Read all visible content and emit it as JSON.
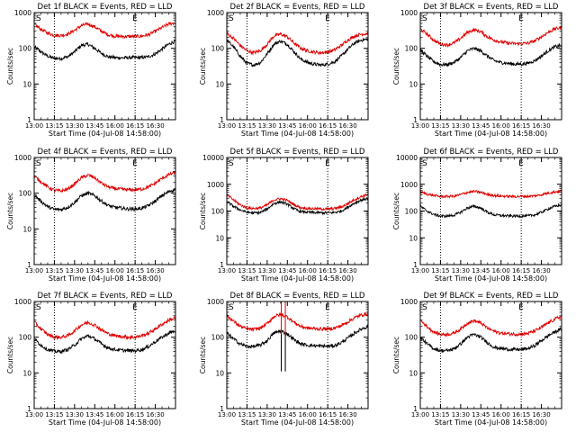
{
  "figure": {
    "colors": {
      "events": "#000000",
      "lld": "#e00000",
      "axes": "#000000",
      "background": "#ffffff"
    },
    "x_tick_labels": [
      "13:00",
      "13:15",
      "13:30",
      "13:45",
      "16:00",
      "16:15",
      "16:30"
    ],
    "y_tick_labels": [
      "1",
      "10",
      "100",
      "1000"
    ],
    "xlabel": "Start Time (04-Jul-08 14:58:00)",
    "ylabel": "Counts/sec",
    "marker_s": "S",
    "marker_e": "E"
  },
  "chart_data": [
    {
      "type": "line",
      "title": "Det 1f BLACK = Events, RED = LLD",
      "y_scale": "log",
      "ylim": [
        1,
        1000
      ],
      "xlim_minutes": [
        0,
        105
      ],
      "x_tick_minutes": [
        0,
        15,
        30,
        45,
        60,
        75,
        90
      ],
      "event_markers_minutes": {
        "S": 15,
        "E": 75
      },
      "x": [
        0,
        5,
        10,
        15,
        20,
        25,
        30,
        35,
        40,
        45,
        50,
        55,
        60,
        65,
        70,
        75,
        80,
        85,
        90,
        95,
        100,
        105
      ],
      "series": [
        {
          "name": "Events",
          "values": [
            110,
            80,
            60,
            52,
            52,
            58,
            80,
            120,
            130,
            100,
            72,
            58,
            55,
            54,
            55,
            55,
            55,
            58,
            70,
            95,
            130,
            160
          ]
        },
        {
          "name": "LLD",
          "values": [
            480,
            340,
            270,
            230,
            230,
            250,
            320,
            430,
            480,
            400,
            300,
            240,
            220,
            215,
            215,
            215,
            220,
            240,
            300,
            380,
            480,
            520
          ]
        }
      ]
    },
    {
      "type": "line",
      "title": "Det 2f BLACK = Events, RED = LLD",
      "y_scale": "log",
      "ylim": [
        1,
        1000
      ],
      "xlim_minutes": [
        0,
        105
      ],
      "x_tick_minutes": [
        0,
        15,
        30,
        45,
        60,
        75,
        90
      ],
      "event_markers_minutes": {
        "S": 15,
        "E": 75
      },
      "x": [
        0,
        5,
        10,
        15,
        20,
        25,
        30,
        35,
        40,
        45,
        50,
        55,
        60,
        65,
        70,
        75,
        80,
        85,
        90,
        95,
        100,
        105
      ],
      "series": [
        {
          "name": "Events",
          "values": [
            170,
            110,
            60,
            38,
            34,
            40,
            70,
            130,
            160,
            130,
            80,
            50,
            40,
            36,
            34,
            36,
            42,
            60,
            95,
            140,
            170,
            180
          ]
        },
        {
          "name": "LLD",
          "values": [
            260,
            190,
            120,
            85,
            75,
            85,
            130,
            220,
            250,
            210,
            140,
            100,
            85,
            78,
            75,
            78,
            90,
            120,
            170,
            220,
            250,
            260
          ]
        }
      ]
    },
    {
      "type": "line",
      "title": "Det 3f BLACK = Events, RED = LLD",
      "y_scale": "log",
      "ylim": [
        1,
        1000
      ],
      "xlim_minutes": [
        0,
        105
      ],
      "x_tick_minutes": [
        0,
        15,
        30,
        45,
        60,
        75,
        90
      ],
      "event_markers_minutes": {
        "S": 15,
        "E": 75
      },
      "x": [
        0,
        5,
        10,
        15,
        20,
        25,
        30,
        35,
        40,
        45,
        50,
        55,
        60,
        65,
        70,
        75,
        80,
        85,
        90,
        95,
        100,
        105
      ],
      "series": [
        {
          "name": "Events",
          "values": [
            90,
            60,
            42,
            35,
            35,
            40,
            55,
            85,
            100,
            85,
            60,
            45,
            40,
            38,
            36,
            36,
            38,
            45,
            60,
            85,
            110,
            120
          ]
        },
        {
          "name": "LLD",
          "values": [
            350,
            250,
            170,
            130,
            125,
            140,
            190,
            280,
            330,
            290,
            210,
            170,
            150,
            140,
            135,
            135,
            140,
            160,
            210,
            280,
            350,
            380
          ]
        }
      ]
    },
    {
      "type": "line",
      "title": "Det 4f BLACK = Events, RED = LLD",
      "y_scale": "log",
      "ylim": [
        1,
        1000
      ],
      "xlim_minutes": [
        0,
        105
      ],
      "x_tick_minutes": [
        0,
        15,
        30,
        45,
        60,
        75,
        90
      ],
      "event_markers_minutes": {
        "S": 15,
        "E": 75
      },
      "x": [
        0,
        5,
        10,
        15,
        20,
        25,
        30,
        35,
        40,
        45,
        50,
        55,
        60,
        65,
        70,
        75,
        80,
        85,
        90,
        95,
        100,
        105
      ],
      "series": [
        {
          "name": "Events",
          "values": [
            90,
            60,
            42,
            35,
            35,
            40,
            55,
            85,
            100,
            85,
            60,
            45,
            40,
            38,
            36,
            36,
            38,
            45,
            60,
            85,
            110,
            130
          ]
        },
        {
          "name": "LLD",
          "values": [
            300,
            210,
            150,
            120,
            115,
            130,
            180,
            270,
            320,
            270,
            190,
            150,
            135,
            128,
            125,
            125,
            130,
            150,
            190,
            260,
            330,
            380
          ]
        }
      ]
    },
    {
      "type": "line",
      "title": "Det 5f BLACK = Events, RED = LLD",
      "y_scale": "log",
      "ylim": [
        1,
        10000
      ],
      "xlim_minutes": [
        0,
        105
      ],
      "x_tick_minutes": [
        0,
        15,
        30,
        45,
        60,
        75,
        90
      ],
      "event_markers_minutes": {
        "S": 15,
        "E": 75
      },
      "x": [
        0,
        5,
        10,
        15,
        20,
        25,
        30,
        35,
        40,
        45,
        50,
        55,
        60,
        65,
        70,
        75,
        80,
        85,
        90,
        95,
        100,
        105
      ],
      "series": [
        {
          "name": "Events",
          "values": [
            230,
            150,
            110,
            90,
            85,
            88,
            120,
            190,
            220,
            180,
            120,
            95,
            90,
            88,
            86,
            86,
            88,
            100,
            140,
            200,
            260,
            300
          ]
        },
        {
          "name": "LLD",
          "values": [
            400,
            260,
            170,
            130,
            125,
            130,
            170,
            260,
            290,
            250,
            170,
            135,
            125,
            122,
            120,
            120,
            125,
            140,
            190,
            270,
            350,
            420
          ]
        }
      ]
    },
    {
      "type": "line",
      "title": "Det 6f BLACK = Events, RED = LLD",
      "y_scale": "log",
      "ylim": [
        1,
        10000
      ],
      "xlim_minutes": [
        0,
        105
      ],
      "x_tick_minutes": [
        0,
        15,
        30,
        45,
        60,
        75,
        90
      ],
      "event_markers_minutes": {
        "S": 15,
        "E": 75
      },
      "x": [
        0,
        5,
        10,
        15,
        20,
        25,
        30,
        35,
        40,
        45,
        50,
        55,
        60,
        65,
        70,
        75,
        80,
        85,
        90,
        95,
        100,
        105
      ],
      "series": [
        {
          "name": "Events",
          "values": [
            150,
            100,
            75,
            65,
            65,
            70,
            90,
            130,
            150,
            130,
            90,
            72,
            68,
            66,
            65,
            65,
            66,
            72,
            90,
            120,
            150,
            170
          ]
        },
        {
          "name": "LLD",
          "values": [
            520,
            430,
            380,
            350,
            350,
            360,
            410,
            500,
            540,
            500,
            420,
            380,
            360,
            355,
            350,
            350,
            355,
            370,
            410,
            470,
            520,
            560
          ]
        }
      ]
    },
    {
      "type": "line",
      "title": "Det 7f BLACK = Events, RED = LLD",
      "y_scale": "log",
      "ylim": [
        1,
        1000
      ],
      "xlim_minutes": [
        0,
        105
      ],
      "x_tick_minutes": [
        0,
        15,
        30,
        45,
        60,
        75,
        90
      ],
      "event_markers_minutes": {
        "S": 15,
        "E": 75
      },
      "x": [
        0,
        5,
        10,
        15,
        20,
        25,
        30,
        35,
        40,
        45,
        50,
        55,
        60,
        65,
        70,
        75,
        80,
        85,
        90,
        95,
        100,
        105
      ],
      "series": [
        {
          "name": "Events",
          "values": [
            90,
            60,
            45,
            40,
            40,
            45,
            60,
            90,
            110,
            90,
            65,
            50,
            45,
            43,
            42,
            42,
            45,
            55,
            75,
            100,
            130,
            150
          ]
        },
        {
          "name": "LLD",
          "values": [
            270,
            170,
            120,
            100,
            100,
            110,
            150,
            220,
            260,
            220,
            160,
            125,
            110,
            105,
            100,
            100,
            110,
            130,
            170,
            230,
            300,
            350
          ]
        }
      ]
    },
    {
      "type": "line",
      "title": "Det 8f BLACK = Events, RED = LLD",
      "y_scale": "log",
      "ylim": [
        1,
        1000
      ],
      "xlim_minutes": [
        0,
        105
      ],
      "x_tick_minutes": [
        0,
        15,
        30,
        45,
        60,
        75,
        90
      ],
      "event_markers_minutes": {
        "S": 15,
        "E": 75
      },
      "x": [
        0,
        5,
        10,
        15,
        20,
        25,
        30,
        35,
        40,
        45,
        50,
        55,
        60,
        65,
        70,
        75,
        80,
        85,
        90,
        95,
        100,
        105
      ],
      "series": [
        {
          "name": "Events",
          "values": [
            130,
            90,
            65,
            55,
            55,
            60,
            80,
            130,
            150,
            125,
            85,
            65,
            60,
            58,
            56,
            56,
            58,
            70,
            95,
            130,
            170,
            200
          ]
        },
        {
          "name": "LLD",
          "values": [
            400,
            280,
            200,
            170,
            165,
            180,
            240,
            380,
            430,
            370,
            260,
            200,
            180,
            175,
            170,
            170,
            180,
            210,
            270,
            350,
            420,
            460
          ]
        }
      ],
      "spikes_minutes": [
        40.5,
        43.5
      ]
    },
    {
      "type": "line",
      "title": "Det 9f BLACK = Events, RED = LLD",
      "y_scale": "log",
      "ylim": [
        1,
        1000
      ],
      "xlim_minutes": [
        0,
        105
      ],
      "x_tick_minutes": [
        0,
        15,
        30,
        45,
        60,
        75,
        90
      ],
      "event_markers_minutes": {
        "S": 15,
        "E": 75
      },
      "x": [
        0,
        5,
        10,
        15,
        20,
        25,
        30,
        35,
        40,
        45,
        50,
        55,
        60,
        65,
        70,
        75,
        80,
        85,
        90,
        95,
        100,
        105
      ],
      "series": [
        {
          "name": "Events",
          "values": [
            100,
            65,
            48,
            42,
            42,
            47,
            65,
            100,
            120,
            100,
            70,
            52,
            48,
            46,
            45,
            45,
            48,
            58,
            80,
            110,
            140,
            170
          ]
        },
        {
          "name": "LLD",
          "values": [
            300,
            200,
            140,
            120,
            120,
            130,
            170,
            250,
            290,
            250,
            180,
            145,
            130,
            125,
            122,
            122,
            128,
            150,
            190,
            250,
            320,
            380
          ]
        }
      ]
    }
  ]
}
